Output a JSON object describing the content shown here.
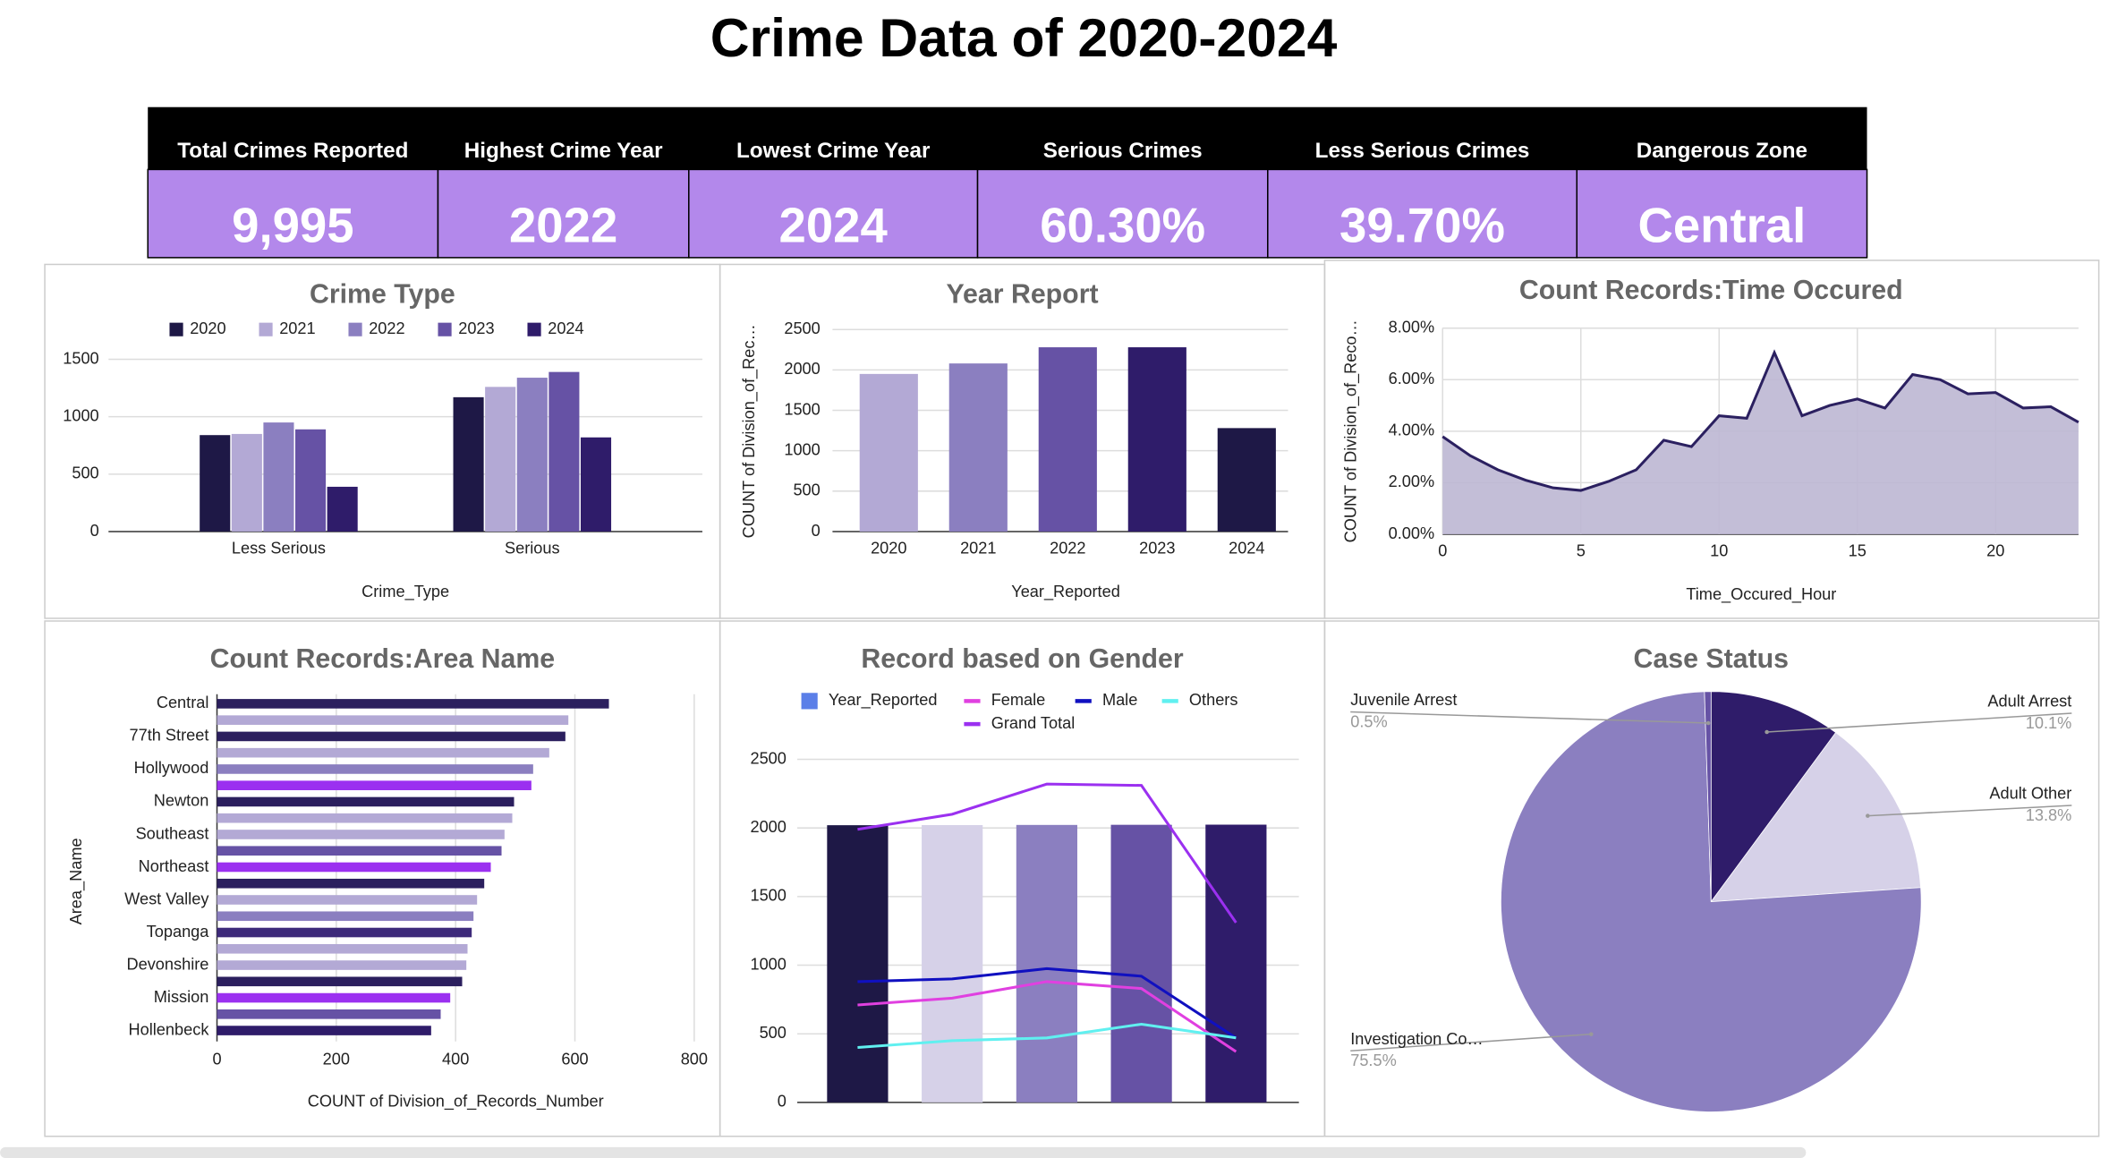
{
  "title": "Crime Data of 2020-2024",
  "kpis": [
    {
      "label": "Total Crimes Reported",
      "value": "9,995"
    },
    {
      "label": "Highest Crime Year",
      "value": "2022"
    },
    {
      "label": "Lowest Crime Year",
      "value": "2024"
    },
    {
      "label": "Serious Crimes",
      "value": "60.30%"
    },
    {
      "label": "Less Serious Crimes",
      "value": "39.70%"
    },
    {
      "label": "Dangerous Zone",
      "value": "Central"
    }
  ],
  "chart_data": [
    {
      "type": "grouped_bar",
      "title": "Crime Type",
      "x_label": "Crime_Type",
      "categories": [
        "Less Serious",
        "Serious"
      ],
      "series": [
        {
          "name": "2020",
          "color": "#1e1846",
          "values": [
            840,
            1170
          ]
        },
        {
          "name": "2021",
          "color": "#b3a9d5",
          "values": [
            850,
            1260
          ]
        },
        {
          "name": "2022",
          "color": "#8b7fc0",
          "values": [
            950,
            1340
          ]
        },
        {
          "name": "2023",
          "color": "#6652a5",
          "values": [
            890,
            1390
          ]
        },
        {
          "name": "2024",
          "color": "#2f1c6a",
          "values": [
            390,
            820
          ]
        }
      ],
      "ylim": [
        0,
        1500
      ],
      "yticks": [
        0,
        500,
        1000,
        1500
      ],
      "grid": true,
      "legend": "top"
    },
    {
      "type": "bar",
      "title": "Year Report",
      "x_label": "Year_Reported",
      "y_label": "COUNT of Division_of_Rec…",
      "categories": [
        "2020",
        "2021",
        "2022",
        "2023",
        "2024"
      ],
      "values": [
        1950,
        2080,
        2280,
        2280,
        1280
      ],
      "colors": [
        "#b3a9d5",
        "#8b7fc0",
        "#6652a5",
        "#2f1c6a",
        "#1e1846"
      ],
      "ylim": [
        0,
        2500
      ],
      "yticks": [
        0,
        500,
        1000,
        1500,
        2000,
        2500
      ],
      "grid": true
    },
    {
      "type": "area",
      "title": "Count Records:Time Occured",
      "x_label": "Time_Occured_Hour",
      "y_label": "COUNT of Division_of_Reco…",
      "x": [
        0,
        1,
        2,
        3,
        4,
        5,
        6,
        7,
        8,
        9,
        10,
        11,
        12,
        13,
        14,
        15,
        16,
        17,
        18,
        19,
        20,
        21,
        22,
        23
      ],
      "values": [
        3.79,
        3.05,
        2.5,
        2.1,
        1.8,
        1.7,
        2.05,
        2.5,
        3.65,
        3.4,
        4.6,
        4.5,
        7.05,
        4.6,
        5.0,
        5.25,
        4.9,
        6.2,
        6.0,
        5.45,
        5.5,
        4.9,
        4.95,
        4.35
      ],
      "color": "#2b2060",
      "fill": "#bdb7d3",
      "xlim": [
        0,
        23
      ],
      "xticks": [
        0,
        5,
        10,
        15,
        20
      ],
      "ylim": [
        0,
        8
      ],
      "yticks": [
        {
          "value": 0,
          "label": "0.00%"
        },
        {
          "value": 2,
          "label": "2.00%"
        },
        {
          "value": 4,
          "label": "4.00%"
        },
        {
          "value": 6,
          "label": "6.00%"
        },
        {
          "value": 8,
          "label": "8.00%"
        }
      ],
      "grid": true
    },
    {
      "type": "hbar",
      "title": "Count Records:Area Name",
      "x_label": "COUNT of Division_of_Records_Number",
      "y_label": "Area_Name",
      "categories": [
        "Central",
        null,
        "77th Street",
        null,
        "Hollywood",
        null,
        "Newton",
        null,
        "Southeast",
        null,
        "Northeast",
        null,
        "West Valley",
        null,
        "Topanga",
        null,
        "Devonshire",
        null,
        "Mission",
        null,
        "Hollenbeck"
      ],
      "values": [
        657,
        589,
        584,
        557,
        530,
        527,
        498,
        495,
        482,
        477,
        459,
        448,
        436,
        430,
        427,
        420,
        418,
        411,
        391,
        375,
        359
      ],
      "colors": [
        "#2b1f5e",
        "#b3a9d5",
        "#2b1f5e",
        "#b3a9d5",
        "#8b7fc0",
        "#9b30f0",
        "#2b1f5e",
        "#b3a9d5",
        "#b3a9d5",
        "#6652a5",
        "#9b30f0",
        "#2b1f5e",
        "#b3a9d5",
        "#8b7fc0",
        "#3d2a7a",
        "#b3a9d5",
        "#b3a9d5",
        "#2b1f5e",
        "#9b30f0",
        "#6652a5",
        "#2f1c6a"
      ],
      "xlim": [
        0,
        800
      ],
      "xticks": [
        0,
        200,
        400,
        600,
        800
      ],
      "grid": true
    },
    {
      "type": "combo",
      "title": "Record based on Gender",
      "categories": [
        null,
        null,
        null,
        null,
        null
      ],
      "series": [
        {
          "name": "Year_Reported",
          "kind": "bar",
          "color": "#5b7fe8",
          "colors": [
            "#1e1846",
            "#d6d1e8",
            "#8b7fc0",
            "#6652a5",
            "#2f1c6a"
          ],
          "values": [
            2020,
            2021,
            2022,
            2023,
            2024
          ]
        },
        {
          "name": "Female",
          "kind": "line",
          "color": "#e040e0",
          "values": [
            710,
            760,
            880,
            830,
            370
          ]
        },
        {
          "name": "Male",
          "kind": "line",
          "color": "#1010c0",
          "values": [
            880,
            900,
            975,
            920,
            470
          ]
        },
        {
          "name": "Others",
          "kind": "line",
          "color": "#60f0f0",
          "values": [
            400,
            450,
            470,
            570,
            470
          ]
        },
        {
          "name": "Grand Total",
          "kind": "line",
          "color": "#9b30f0",
          "values": [
            1990,
            2100,
            2320,
            2310,
            1310
          ]
        }
      ],
      "ylim": [
        0,
        2500
      ],
      "yticks": [
        0,
        500,
        1000,
        1500,
        2000,
        2500
      ],
      "grid": true,
      "legend": "top"
    },
    {
      "type": "pie",
      "title": "Case Status",
      "categories": [
        "Adult Arrest",
        "Adult Other",
        "Investigation Co…",
        "Juvenile Arrest"
      ],
      "values": [
        10.1,
        13.8,
        75.5,
        0.5
      ],
      "value_labels": [
        "10.1%",
        "13.8%",
        "75.5%",
        "0.5%"
      ],
      "colors": [
        "#2f1c6a",
        "#d6d1e8",
        "#8b7fc0",
        "#6652a5"
      ]
    }
  ]
}
